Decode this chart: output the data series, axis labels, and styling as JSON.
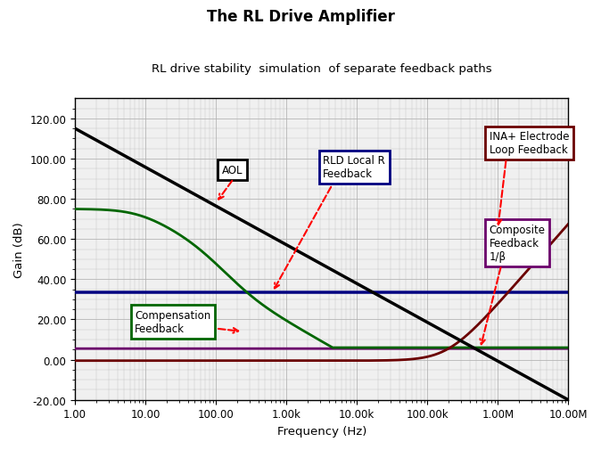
{
  "title": "The RL Drive Amplifier",
  "subtitle": "RL drive stability  simulation  of separate feedback paths",
  "xlabel": "Frequency (Hz)",
  "ylabel": "Gain (dB)",
  "ylim": [
    -20,
    130
  ],
  "yticks": [
    -20,
    0,
    20,
    40,
    60,
    80,
    100,
    120
  ],
  "xtick_labels": [
    "1.00",
    "10.00",
    "100.00",
    "1.00k",
    "10.00k",
    "100.00k",
    "1.00M",
    "10.00M"
  ],
  "xtick_vals": [
    0,
    1,
    2,
    3,
    4,
    5,
    6,
    7
  ],
  "background_color": "#ffffff",
  "plot_bg_color": "#f0f0f0",
  "grid_color": "#b0b0b0",
  "colors": {
    "AOL": "#000000",
    "compensation": "#006600",
    "rld_local": "#000080",
    "ina_electrode": "#6B0000",
    "composite": "#6B006B"
  }
}
